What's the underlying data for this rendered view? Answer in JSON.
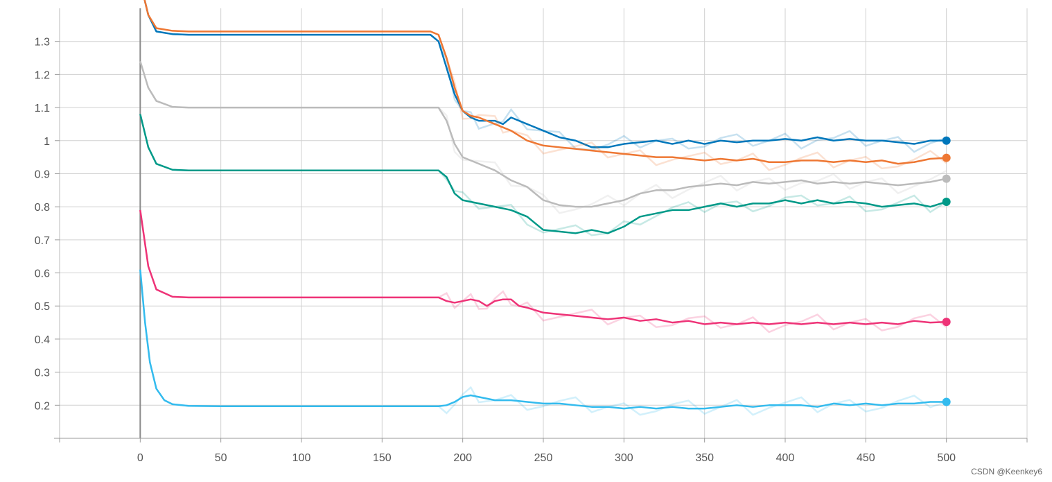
{
  "watermark": "CSDN @Keenkey6",
  "chart_data": {
    "type": "line",
    "title": "",
    "xlabel": "",
    "ylabel": "",
    "xlim": [
      -50,
      550
    ],
    "ylim": [
      0.1,
      1.4
    ],
    "x_ticks": [
      0,
      50,
      100,
      150,
      200,
      250,
      300,
      350,
      400,
      450,
      500
    ],
    "y_ticks": [
      0.2,
      0.3,
      0.4,
      0.5,
      0.6,
      0.7,
      0.8,
      0.9,
      1.0,
      1.1,
      1.2,
      1.3
    ],
    "x_tick_labels": [
      "0",
      "50",
      "100",
      "150",
      "200",
      "250",
      "300",
      "350",
      "400",
      "450",
      "500"
    ],
    "y_tick_labels": [
      "0.2",
      "0.3",
      "0.4",
      "0.5",
      "0.6",
      "0.7",
      "0.8",
      "0.9",
      "1",
      "1.1",
      "1.2",
      "1.3"
    ],
    "grid": true,
    "legend": "none",
    "series": [
      {
        "color": "#0077bb",
        "x": [
          0,
          5,
          10,
          20,
          30,
          50,
          100,
          150,
          180,
          185,
          190,
          195,
          200,
          205,
          210,
          220,
          225,
          230,
          240,
          250,
          260,
          270,
          280,
          290,
          300,
          310,
          320,
          330,
          340,
          350,
          360,
          370,
          380,
          390,
          400,
          410,
          420,
          430,
          440,
          450,
          460,
          470,
          480,
          490,
          500
        ],
        "values": [
          1.48,
          1.38,
          1.33,
          1.322,
          1.32,
          1.32,
          1.32,
          1.32,
          1.32,
          1.3,
          1.22,
          1.14,
          1.09,
          1.07,
          1.06,
          1.06,
          1.05,
          1.07,
          1.05,
          1.03,
          1.01,
          1.0,
          0.98,
          0.98,
          0.99,
          0.995,
          1.0,
          0.99,
          1.0,
          0.99,
          1.0,
          0.995,
          1.0,
          1.0,
          1.005,
          1.0,
          1.01,
          1.0,
          1.005,
          1.0,
          1.0,
          0.995,
          0.99,
          1.0,
          1.0
        ]
      },
      {
        "color": "#ee7733",
        "x": [
          0,
          5,
          10,
          20,
          30,
          50,
          100,
          150,
          180,
          185,
          190,
          195,
          200,
          205,
          210,
          220,
          225,
          230,
          240,
          250,
          260,
          270,
          280,
          290,
          300,
          310,
          320,
          330,
          340,
          350,
          360,
          370,
          380,
          390,
          400,
          410,
          420,
          430,
          440,
          450,
          460,
          470,
          480,
          490,
          500
        ],
        "values": [
          1.48,
          1.38,
          1.34,
          1.332,
          1.33,
          1.33,
          1.33,
          1.33,
          1.33,
          1.32,
          1.25,
          1.16,
          1.09,
          1.075,
          1.07,
          1.05,
          1.04,
          1.03,
          1.0,
          0.985,
          0.98,
          0.975,
          0.97,
          0.965,
          0.96,
          0.955,
          0.95,
          0.95,
          0.945,
          0.94,
          0.945,
          0.94,
          0.945,
          0.935,
          0.935,
          0.94,
          0.94,
          0.935,
          0.94,
          0.935,
          0.94,
          0.93,
          0.935,
          0.945,
          0.948
        ]
      },
      {
        "color": "#bbbbbb",
        "x": [
          0,
          5,
          10,
          20,
          30,
          50,
          100,
          150,
          185,
          190,
          195,
          200,
          210,
          220,
          230,
          240,
          250,
          260,
          270,
          280,
          290,
          300,
          310,
          320,
          330,
          340,
          350,
          360,
          370,
          380,
          390,
          400,
          410,
          420,
          430,
          440,
          450,
          460,
          470,
          480,
          490,
          500
        ],
        "values": [
          1.24,
          1.16,
          1.12,
          1.102,
          1.1,
          1.1,
          1.1,
          1.1,
          1.1,
          1.06,
          0.99,
          0.95,
          0.93,
          0.91,
          0.88,
          0.86,
          0.82,
          0.805,
          0.8,
          0.8,
          0.81,
          0.82,
          0.84,
          0.85,
          0.85,
          0.86,
          0.865,
          0.87,
          0.865,
          0.875,
          0.87,
          0.875,
          0.88,
          0.87,
          0.875,
          0.87,
          0.875,
          0.87,
          0.865,
          0.87,
          0.875,
          0.885
        ]
      },
      {
        "color": "#009988",
        "x": [
          0,
          5,
          10,
          20,
          30,
          50,
          100,
          150,
          185,
          190,
          195,
          200,
          210,
          220,
          230,
          240,
          250,
          260,
          270,
          280,
          290,
          300,
          310,
          320,
          330,
          340,
          350,
          360,
          370,
          380,
          390,
          400,
          410,
          420,
          430,
          440,
          450,
          460,
          470,
          480,
          490,
          500
        ],
        "values": [
          1.08,
          0.98,
          0.93,
          0.912,
          0.91,
          0.91,
          0.91,
          0.91,
          0.91,
          0.89,
          0.84,
          0.82,
          0.81,
          0.8,
          0.79,
          0.77,
          0.73,
          0.725,
          0.72,
          0.73,
          0.72,
          0.74,
          0.77,
          0.78,
          0.79,
          0.79,
          0.8,
          0.81,
          0.8,
          0.81,
          0.81,
          0.82,
          0.81,
          0.82,
          0.81,
          0.815,
          0.81,
          0.8,
          0.805,
          0.81,
          0.8,
          0.815
        ]
      },
      {
        "color": "#ee3377",
        "x": [
          0,
          5,
          10,
          20,
          30,
          50,
          100,
          150,
          185,
          190,
          195,
          200,
          205,
          210,
          215,
          220,
          225,
          230,
          235,
          240,
          250,
          260,
          270,
          280,
          290,
          300,
          310,
          320,
          330,
          340,
          350,
          360,
          370,
          380,
          390,
          400,
          410,
          420,
          430,
          440,
          450,
          460,
          470,
          480,
          490,
          500
        ],
        "values": [
          0.79,
          0.62,
          0.55,
          0.528,
          0.526,
          0.526,
          0.526,
          0.526,
          0.526,
          0.515,
          0.51,
          0.515,
          0.52,
          0.515,
          0.5,
          0.515,
          0.52,
          0.52,
          0.5,
          0.495,
          0.48,
          0.475,
          0.47,
          0.465,
          0.46,
          0.465,
          0.455,
          0.46,
          0.45,
          0.455,
          0.445,
          0.45,
          0.445,
          0.45,
          0.445,
          0.45,
          0.445,
          0.45,
          0.445,
          0.45,
          0.445,
          0.45,
          0.445,
          0.455,
          0.45,
          0.452
        ]
      },
      {
        "color": "#33bbee",
        "x": [
          0,
          3,
          6,
          10,
          15,
          20,
          30,
          50,
          100,
          150,
          185,
          190,
          195,
          200,
          205,
          210,
          220,
          230,
          240,
          250,
          260,
          270,
          280,
          290,
          300,
          310,
          320,
          330,
          340,
          350,
          360,
          370,
          380,
          390,
          400,
          410,
          420,
          430,
          440,
          450,
          460,
          470,
          480,
          490,
          500
        ],
        "values": [
          0.61,
          0.45,
          0.33,
          0.25,
          0.215,
          0.203,
          0.198,
          0.197,
          0.197,
          0.197,
          0.197,
          0.2,
          0.21,
          0.225,
          0.23,
          0.225,
          0.215,
          0.215,
          0.21,
          0.205,
          0.205,
          0.2,
          0.195,
          0.195,
          0.19,
          0.195,
          0.19,
          0.195,
          0.19,
          0.19,
          0.195,
          0.2,
          0.195,
          0.2,
          0.2,
          0.2,
          0.195,
          0.205,
          0.2,
          0.205,
          0.2,
          0.205,
          0.205,
          0.21,
          0.21
        ]
      }
    ]
  }
}
